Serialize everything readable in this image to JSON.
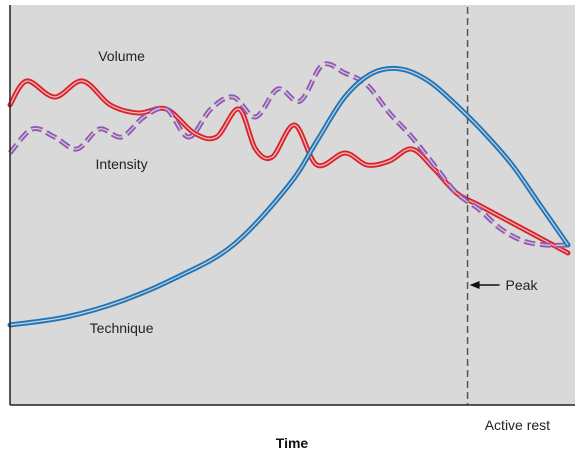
{
  "chart_data": {
    "type": "line",
    "xlabel": "Time",
    "ylabel": "",
    "xlim": [
      0,
      100
    ],
    "ylim": [
      0,
      100
    ],
    "grid": false,
    "background": "#d9d9d9",
    "series": [
      {
        "name": "Volume",
        "color": "#d9262e",
        "style": "solid-double",
        "x": [
          0,
          3,
          8,
          13,
          18,
          23,
          28,
          33,
          37,
          41,
          44,
          47,
          51,
          55,
          60,
          64,
          68,
          72,
          76,
          80,
          84,
          88,
          92,
          96,
          100
        ],
        "y": [
          75,
          81,
          77,
          81,
          75,
          73,
          74,
          68,
          67,
          74,
          64,
          62,
          70,
          60,
          63,
          60,
          61,
          64,
          59,
          53,
          50,
          47,
          44,
          41,
          38
        ]
      },
      {
        "name": "Intensity",
        "color": "#8e5bb5",
        "style": "dashed-double",
        "x": [
          0,
          4,
          8,
          12,
          16,
          20,
          24,
          28,
          32,
          36,
          40,
          44,
          48,
          52,
          56,
          60,
          64,
          68,
          72,
          76,
          80,
          84,
          88,
          92,
          96,
          100
        ],
        "y": [
          63,
          69,
          67,
          64,
          69,
          67,
          72,
          74,
          67,
          74,
          77,
          72,
          79,
          76,
          85,
          83,
          80,
          73,
          67,
          60,
          53,
          49,
          44,
          41,
          40,
          40
        ]
      },
      {
        "name": "Technique",
        "color": "#1f77b8",
        "style": "solid-double",
        "x": [
          0,
          10,
          20,
          30,
          40,
          50,
          55,
          60,
          65,
          70,
          75,
          80,
          85,
          90,
          95,
          100
        ],
        "y": [
          20,
          22,
          26,
          32,
          40,
          55,
          66,
          77,
          83,
          84,
          81,
          75,
          68,
          60,
          50,
          40
        ]
      }
    ],
    "annotations": [
      {
        "label": "Volume",
        "x": 20,
        "y": 86
      },
      {
        "label": "Intensity",
        "x": 20,
        "y": 59
      },
      {
        "label": "Technique",
        "x": 20,
        "y": 18
      },
      {
        "label": "Peak",
        "arrow": true,
        "x": 82,
        "y": 30
      },
      {
        "label": "Active rest",
        "below_axis": true,
        "x": 92
      }
    ],
    "vline": {
      "x": 82,
      "style": "dashed",
      "color": "#555555"
    }
  }
}
